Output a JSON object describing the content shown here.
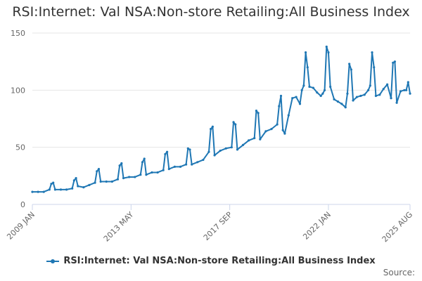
{
  "chart_data": {
    "type": "line",
    "title": "RSI:Internet: Val NSA:Non-store Retailing:All Business Index",
    "xlabel": "",
    "ylabel": "",
    "ylim": [
      0,
      150
    ],
    "y_ticks": [
      "0",
      "50",
      "100",
      "150"
    ],
    "x_ticks": [
      "2009 JAN",
      "2013 MAY",
      "2017 SEP",
      "2022 JAN",
      "2025 AUG"
    ],
    "grid": true,
    "legend_position": "bottom",
    "series": [
      {
        "name": "RSI:Internet: Val NSA:Non-store Retailing:All Business Index",
        "color": "#1f77b4",
        "points": [
          [
            "2009-01",
            11
          ],
          [
            "2009-04",
            11
          ],
          [
            "2009-07",
            11
          ],
          [
            "2009-10",
            13
          ],
          [
            "2009-11",
            18
          ],
          [
            "2009-12",
            19
          ],
          [
            "2010-01",
            13
          ],
          [
            "2010-04",
            13
          ],
          [
            "2010-07",
            13
          ],
          [
            "2010-10",
            14
          ],
          [
            "2010-11",
            21
          ],
          [
            "2010-12",
            23
          ],
          [
            "2011-01",
            16
          ],
          [
            "2011-04",
            15
          ],
          [
            "2011-07",
            17
          ],
          [
            "2011-10",
            19
          ],
          [
            "2011-11",
            29
          ],
          [
            "2011-12",
            31
          ],
          [
            "2012-01",
            20
          ],
          [
            "2012-04",
            20
          ],
          [
            "2012-07",
            20
          ],
          [
            "2012-10",
            22
          ],
          [
            "2012-11",
            34
          ],
          [
            "2012-12",
            36
          ],
          [
            "2013-01",
            23
          ],
          [
            "2013-04",
            24
          ],
          [
            "2013-07",
            24
          ],
          [
            "2013-10",
            26
          ],
          [
            "2013-11",
            37
          ],
          [
            "2013-12",
            40
          ],
          [
            "2014-01",
            26
          ],
          [
            "2014-04",
            28
          ],
          [
            "2014-07",
            28
          ],
          [
            "2014-10",
            30
          ],
          [
            "2014-11",
            44
          ],
          [
            "2014-12",
            46
          ],
          [
            "2015-01",
            31
          ],
          [
            "2015-04",
            33
          ],
          [
            "2015-07",
            33
          ],
          [
            "2015-10",
            35
          ],
          [
            "2015-11",
            49
          ],
          [
            "2015-12",
            48
          ],
          [
            "2016-01",
            35
          ],
          [
            "2016-04",
            37
          ],
          [
            "2016-07",
            39
          ],
          [
            "2016-10",
            46
          ],
          [
            "2016-11",
            66
          ],
          [
            "2016-12",
            68
          ],
          [
            "2017-01",
            43
          ],
          [
            "2017-04",
            47
          ],
          [
            "2017-07",
            49
          ],
          [
            "2017-10",
            50
          ],
          [
            "2017-11",
            72
          ],
          [
            "2017-12",
            70
          ],
          [
            "2018-01",
            48
          ],
          [
            "2018-04",
            52
          ],
          [
            "2018-07",
            56
          ],
          [
            "2018-10",
            58
          ],
          [
            "2018-11",
            82
          ],
          [
            "2018-12",
            80
          ],
          [
            "2019-01",
            57
          ],
          [
            "2019-04",
            64
          ],
          [
            "2019-07",
            66
          ],
          [
            "2019-10",
            70
          ],
          [
            "2019-11",
            86
          ],
          [
            "2019-12",
            95
          ],
          [
            "2020-01",
            65
          ],
          [
            "2020-02",
            62
          ],
          [
            "2020-04",
            78
          ],
          [
            "2020-06",
            93
          ],
          [
            "2020-08",
            94
          ],
          [
            "2020-10",
            88
          ],
          [
            "2020-11",
            100
          ],
          [
            "2020-12",
            104
          ],
          [
            "2021-01",
            133
          ],
          [
            "2021-02",
            120
          ],
          [
            "2021-03",
            103
          ],
          [
            "2021-05",
            102
          ],
          [
            "2021-07",
            98
          ],
          [
            "2021-09",
            95
          ],
          [
            "2021-10",
            97
          ],
          [
            "2021-11",
            100
          ],
          [
            "2021-12",
            138
          ],
          [
            "2022-01",
            133
          ],
          [
            "2022-02",
            103
          ],
          [
            "2022-04",
            92
          ],
          [
            "2022-06",
            90
          ],
          [
            "2022-08",
            88
          ],
          [
            "2022-10",
            85
          ],
          [
            "2022-11",
            97
          ],
          [
            "2022-12",
            123
          ],
          [
            "2023-01",
            118
          ],
          [
            "2023-02",
            91
          ],
          [
            "2023-04",
            94
          ],
          [
            "2023-06",
            95
          ],
          [
            "2023-08",
            96
          ],
          [
            "2023-10",
            100
          ],
          [
            "2023-11",
            104
          ],
          [
            "2023-12",
            133
          ],
          [
            "2024-01",
            120
          ],
          [
            "2024-02",
            95
          ],
          [
            "2024-04",
            96
          ],
          [
            "2024-06",
            101
          ],
          [
            "2024-08",
            105
          ],
          [
            "2024-10",
            93
          ],
          [
            "2024-11",
            124
          ],
          [
            "2024-12",
            125
          ],
          [
            "2025-01",
            89
          ],
          [
            "2025-03",
            99
          ],
          [
            "2025-05",
            100
          ],
          [
            "2025-06",
            100
          ],
          [
            "2025-07",
            107
          ],
          [
            "2025-08",
            97
          ]
        ]
      }
    ]
  },
  "footer": {
    "credit": "Source:"
  }
}
